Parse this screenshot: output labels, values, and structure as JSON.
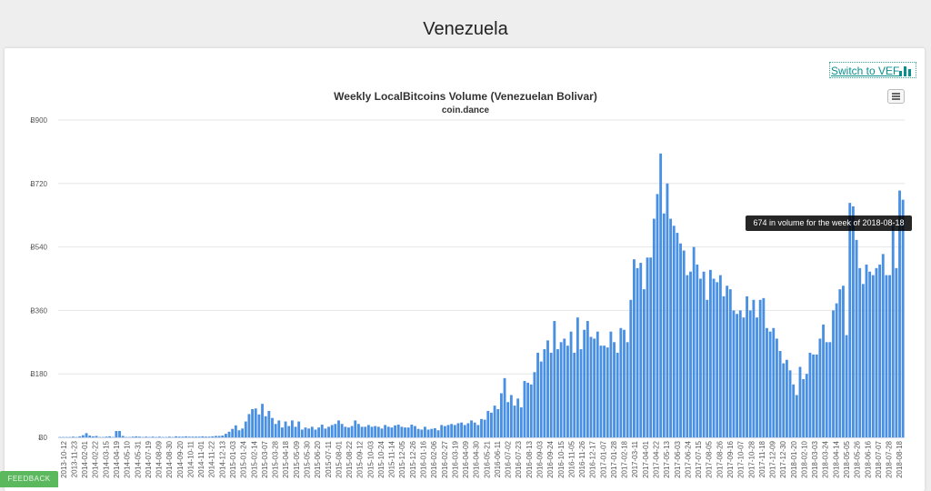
{
  "page": {
    "title": "Venezuela"
  },
  "switch_button": {
    "label": "Switch to VEF",
    "icon": "bar-chart-icon"
  },
  "menu_button": {
    "icon": "hamburger-menu-icon"
  },
  "tooltip": {
    "text": "674 in volume for the week of 2018-08-18"
  },
  "feedback": {
    "label": "FEEDBACK"
  },
  "colors": {
    "bar": "#4a90e2",
    "grid": "#e6e6e6",
    "text": "#333333",
    "accent": "#0a8f8f",
    "feedback": "#5cb85c"
  },
  "chart_data": {
    "type": "bar",
    "title": "Weekly LocalBitcoins Volume (Venezuelan Bolivar)",
    "subtitle": "coin.dance",
    "xlabel": "",
    "ylabel": "",
    "ylim": [
      0,
      900
    ],
    "yticks": [
      "Ƀ0",
      "Ƀ180",
      "Ƀ360",
      "Ƀ540",
      "Ƀ720",
      "Ƀ900"
    ],
    "grid": true,
    "legend": "none",
    "xtick_labels": [
      "2013-10-12",
      "2013-11-23",
      "2014-02-01",
      "2014-02-22",
      "2014-03-15",
      "2014-04-19",
      "2014-05-10",
      "2014-05-31",
      "2014-07-19",
      "2014-08-09",
      "2014-08-30",
      "2014-09-20",
      "2014-10-11",
      "2014-11-01",
      "2014-11-22",
      "2014-12-13",
      "2015-01-03",
      "2015-01-24",
      "2015-02-14",
      "2015-03-07",
      "2015-03-28",
      "2015-04-18",
      "2015-05-09",
      "2015-05-30",
      "2015-06-20",
      "2015-07-11",
      "2015-08-01",
      "2015-08-22",
      "2015-09-12",
      "2015-10-03",
      "2015-10-24",
      "2015-11-14",
      "2015-12-05",
      "2015-12-26",
      "2016-01-16",
      "2016-02-06",
      "2016-02-27",
      "2016-03-19",
      "2016-04-09",
      "2016-04-30",
      "2016-05-21",
      "2016-06-11",
      "2016-07-02",
      "2016-07-23",
      "2016-08-13",
      "2016-09-03",
      "2016-09-24",
      "2016-10-15",
      "2016-11-05",
      "2016-11-26",
      "2016-12-17",
      "2017-01-07",
      "2017-01-28",
      "2017-02-18",
      "2017-03-11",
      "2017-04-01",
      "2017-04-22",
      "2017-05-13",
      "2017-06-03",
      "2017-06-24",
      "2017-07-15",
      "2017-08-05",
      "2017-08-26",
      "2017-09-16",
      "2017-10-07",
      "2017-10-28",
      "2017-11-18",
      "2017-12-09",
      "2017-12-30",
      "2018-01-20",
      "2018-02-10",
      "2018-03-03",
      "2018-03-24",
      "2018-04-14",
      "2018-05-05",
      "2018-05-26",
      "2018-06-16",
      "2018-07-07",
      "2018-07-28",
      "2018-08-18"
    ],
    "values": [
      1,
      1,
      1,
      1,
      2,
      1,
      3,
      6,
      12,
      5,
      3,
      4,
      1,
      1,
      2,
      3,
      1,
      18,
      18,
      4,
      1,
      1,
      2,
      3,
      2,
      1,
      2,
      1,
      2,
      1,
      2,
      1,
      1,
      2,
      1,
      3,
      2,
      2,
      3,
      2,
      2,
      2,
      2,
      3,
      2,
      2,
      3,
      4,
      4,
      5,
      10,
      16,
      24,
      34,
      20,
      25,
      45,
      66,
      80,
      82,
      65,
      95,
      60,
      75,
      55,
      38,
      48,
      28,
      45,
      32,
      48,
      30,
      45,
      22,
      28,
      25,
      30,
      22,
      28,
      36,
      25,
      30,
      35,
      38,
      48,
      38,
      30,
      28,
      32,
      48,
      38,
      30,
      30,
      35,
      30,
      32,
      30,
      25,
      35,
      30,
      28,
      34,
      36,
      30,
      28,
      28,
      36,
      32,
      24,
      22,
      30,
      22,
      24,
      26,
      20,
      35,
      32,
      35,
      38,
      35,
      40,
      42,
      35,
      40,
      48,
      42,
      35,
      52,
      50,
      75,
      70,
      90,
      80,
      125,
      168,
      100,
      120,
      90,
      110,
      85,
      160,
      155,
      150,
      185,
      240,
      215,
      250,
      275,
      240,
      330,
      250,
      270,
      280,
      260,
      300,
      240,
      340,
      250,
      305,
      330,
      285,
      280,
      300,
      260,
      260,
      255,
      300,
      270,
      240,
      310,
      305,
      270,
      390,
      505,
      480,
      495,
      420,
      510,
      510,
      620,
      690,
      805,
      635,
      720,
      620,
      600,
      580,
      550,
      530,
      460,
      470,
      540,
      490,
      450,
      470,
      390,
      475,
      450,
      440,
      460,
      400,
      430,
      420,
      360,
      350,
      360,
      340,
      400,
      360,
      390,
      340,
      390,
      395,
      310,
      300,
      310,
      280,
      245,
      210,
      220,
      190,
      150,
      120,
      200,
      165,
      180,
      240,
      235,
      235,
      280,
      320,
      270,
      270,
      360,
      380,
      420,
      430,
      290,
      665,
      655,
      560,
      480,
      435,
      490,
      470,
      460,
      480,
      490,
      520,
      460,
      460,
      600,
      480,
      700,
      674
    ]
  }
}
